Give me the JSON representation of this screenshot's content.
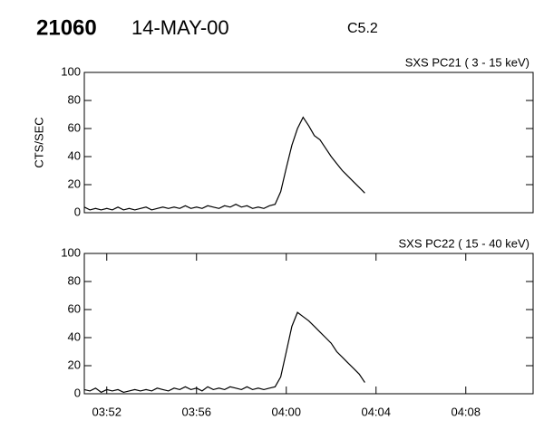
{
  "header": {
    "event": "21060",
    "date": "14-MAY-00",
    "class": "C5.2"
  },
  "chart_data": [
    {
      "type": "line",
      "title": "SXS PC21  (  3 - 15 keV)",
      "y_label": "CTS/SEC",
      "x": [
        231,
        231.25,
        231.5,
        231.75,
        232,
        232.25,
        232.5,
        232.75,
        233,
        233.25,
        233.5,
        233.75,
        234,
        234.25,
        234.5,
        234.75,
        235,
        235.25,
        235.5,
        235.75,
        236,
        236.25,
        236.5,
        236.75,
        237,
        237.25,
        237.5,
        237.75,
        238,
        238.25,
        238.5,
        238.75,
        239,
        239.25,
        239.5,
        239.75,
        240,
        240.25,
        240.5,
        240.75,
        241,
        241.25,
        241.5,
        241.75,
        242,
        242.25,
        242.5,
        242.75,
        243,
        243.25,
        243.5
      ],
      "series": [
        {
          "color": "#000000",
          "values": [
            4,
            2,
            3,
            2,
            3,
            2,
            4,
            2,
            3,
            2,
            3,
            4,
            2,
            3,
            4,
            3,
            4,
            3,
            5,
            3,
            4,
            3,
            5,
            4,
            3,
            5,
            4,
            6,
            4,
            5,
            3,
            4,
            3,
            5,
            6,
            15,
            32,
            48,
            60,
            68,
            62,
            55,
            52,
            46,
            40,
            35,
            30,
            26,
            22,
            18,
            14
          ]
        }
      ],
      "xlim": [
        231,
        251
      ],
      "ylim": [
        0,
        100
      ],
      "yticks": [
        0,
        20,
        40,
        60,
        80,
        100
      ]
    },
    {
      "type": "line",
      "title": "SXS PC22  ( 15 - 40 keV)",
      "x": [
        231,
        231.25,
        231.5,
        231.75,
        232,
        232.25,
        232.5,
        232.75,
        233,
        233.25,
        233.5,
        233.75,
        234,
        234.25,
        234.5,
        234.75,
        235,
        235.25,
        235.5,
        235.75,
        236,
        236.25,
        236.5,
        236.75,
        237,
        237.25,
        237.5,
        237.75,
        238,
        238.25,
        238.5,
        238.75,
        239,
        239.25,
        239.5,
        239.75,
        240,
        240.25,
        240.5,
        240.75,
        241,
        241.25,
        241.5,
        241.75,
        242,
        242.25,
        242.5,
        242.75,
        243,
        243.25,
        243.5
      ],
      "series": [
        {
          "color": "#000000",
          "values": [
            3,
            2,
            4,
            1,
            3,
            2,
            3,
            1,
            2,
            3,
            2,
            3,
            2,
            4,
            3,
            2,
            4,
            3,
            5,
            3,
            4,
            2,
            5,
            3,
            4,
            3,
            5,
            4,
            3,
            5,
            3,
            4,
            3,
            4,
            5,
            12,
            30,
            48,
            58,
            55,
            52,
            48,
            44,
            40,
            36,
            30,
            26,
            22,
            18,
            14,
            8
          ]
        }
      ],
      "xlim": [
        231,
        251
      ],
      "ylim": [
        0,
        100
      ],
      "yticks": [
        0,
        20,
        40,
        60,
        80,
        100
      ],
      "xticks": [
        {
          "value": 232,
          "label": "03:52"
        },
        {
          "value": 236,
          "label": "03:56"
        },
        {
          "value": 240,
          "label": "04:00"
        },
        {
          "value": 244,
          "label": "04:04"
        },
        {
          "value": 248,
          "label": "04:08"
        }
      ]
    }
  ]
}
